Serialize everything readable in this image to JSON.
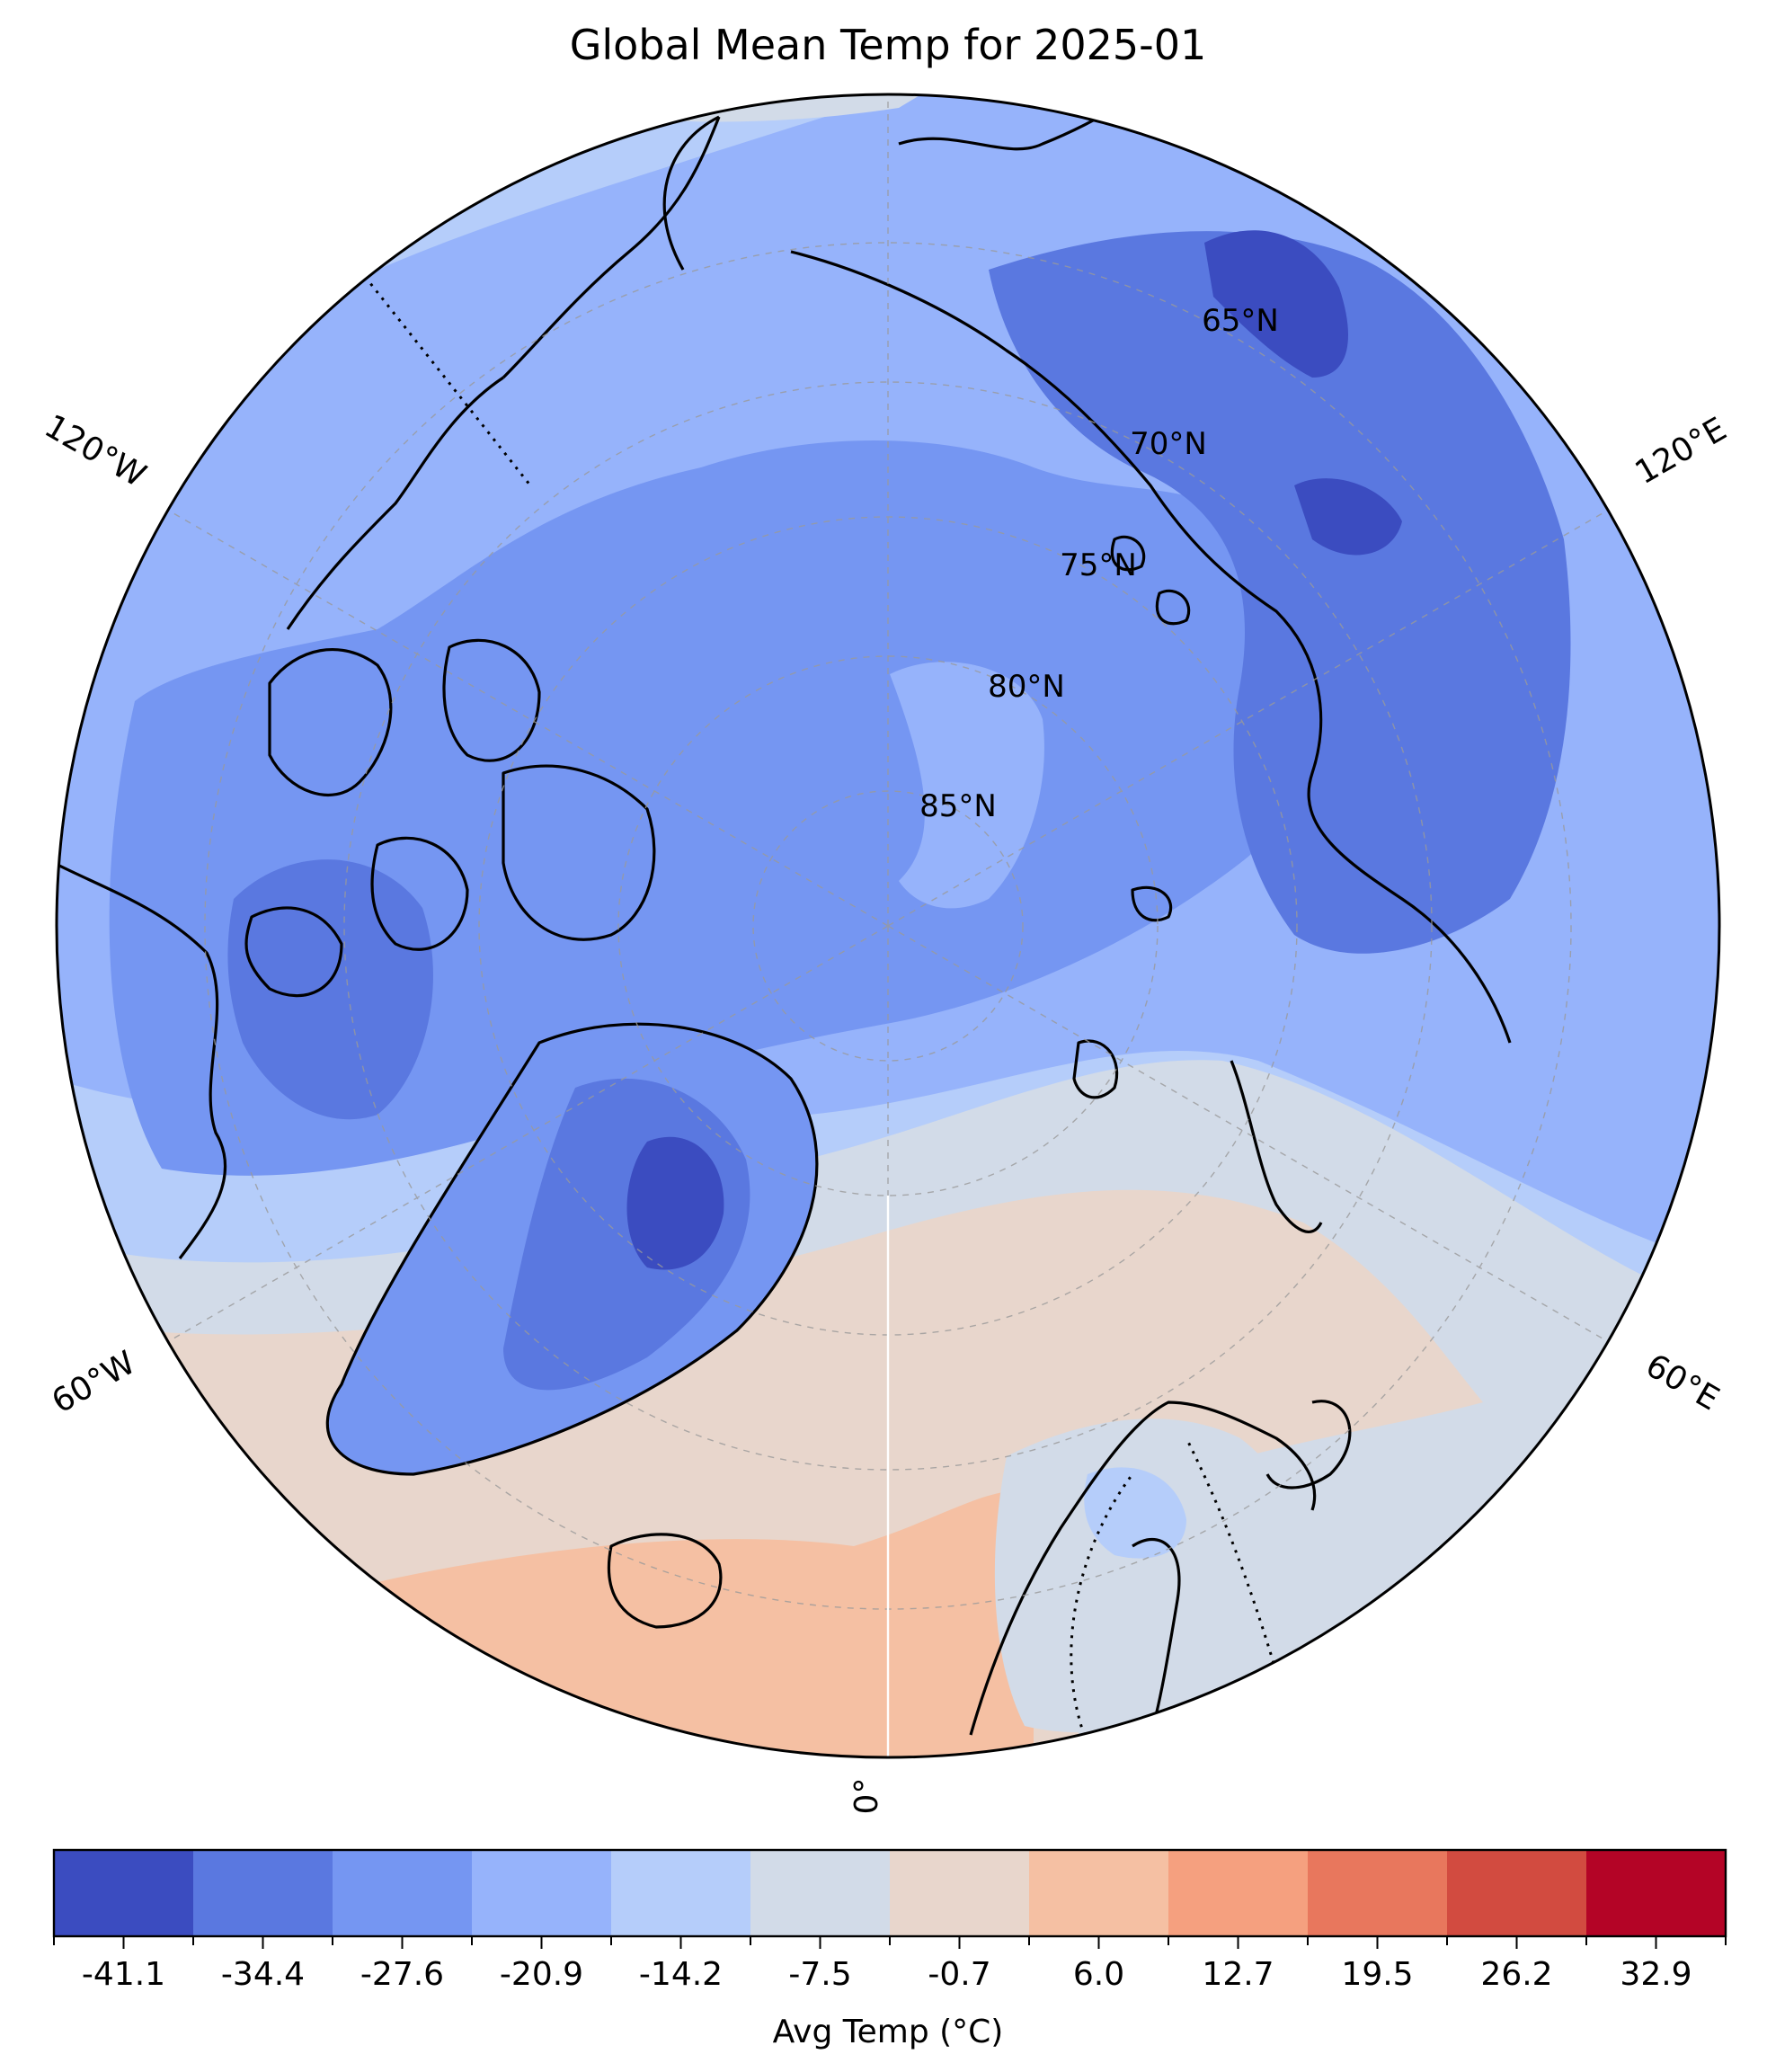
{
  "title": "Global Mean Temp for 2025-01",
  "map": {
    "projection": "north-polar-stereographic",
    "longitude_labels": [
      "120°W",
      "120°E",
      "60°W",
      "60°E",
      "0°"
    ],
    "latitude_labels": [
      "65°N",
      "70°N",
      "75°N",
      "80°N",
      "85°N"
    ],
    "gridlines": true
  },
  "colorbar": {
    "label": "Avg Temp (°C)",
    "ticks": [
      "-41.1",
      "-34.4",
      "-27.6",
      "-20.9",
      "-14.2",
      "-7.5",
      "-0.7",
      "6.0",
      "12.7",
      "19.5",
      "26.2",
      "32.9"
    ],
    "colors": [
      "#3b4cc0",
      "#5a78e0",
      "#7596f2",
      "#96b3fb",
      "#b5cdfa",
      "#d2dbe8",
      "#e8d6cc",
      "#f5c0a3",
      "#f5a07f",
      "#e8775d",
      "#d24b40",
      "#b40426"
    ]
  }
}
